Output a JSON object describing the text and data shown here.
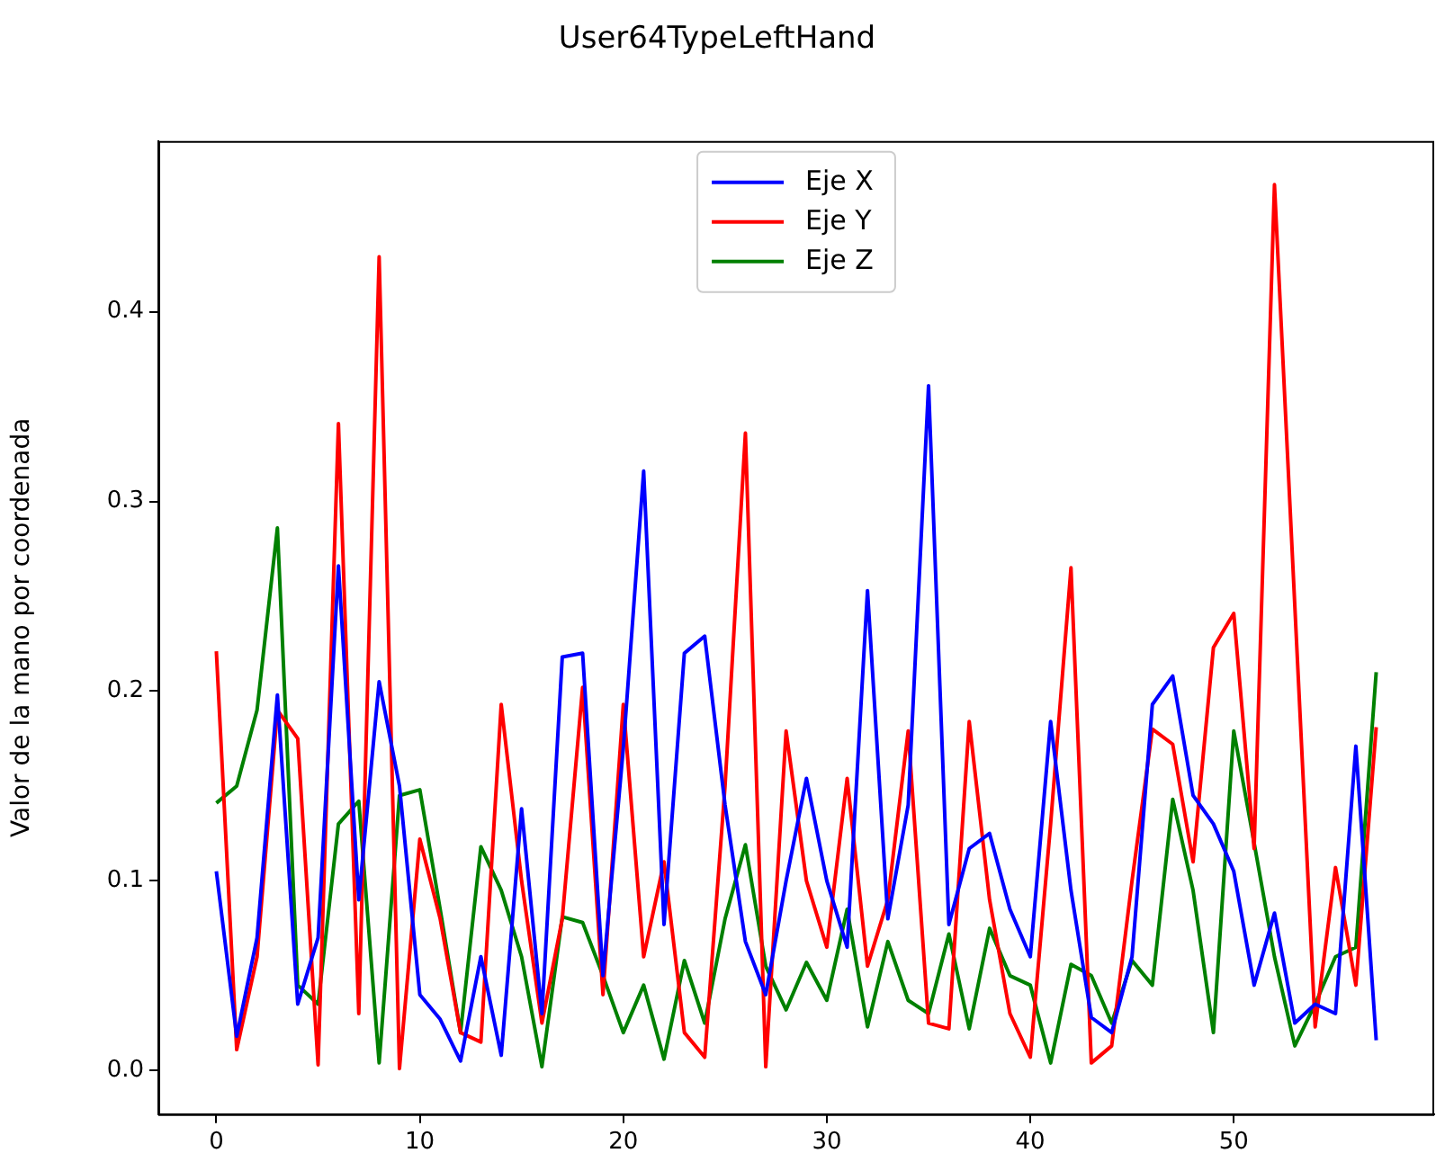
{
  "chart_data": {
    "type": "line",
    "title": "User64TypeLeftHand",
    "ylabel": "Valor de la mano por coordenada",
    "x": [
      0,
      1,
      2,
      3,
      4,
      5,
      6,
      7,
      8,
      9,
      10,
      11,
      12,
      13,
      14,
      15,
      16,
      17,
      18,
      19,
      20,
      21,
      22,
      23,
      24,
      25,
      26,
      27,
      28,
      29,
      30,
      31,
      32,
      33,
      34,
      35,
      36,
      37,
      38,
      39,
      40,
      41,
      42,
      43,
      44,
      45,
      46,
      47,
      48,
      49,
      50,
      51,
      52,
      53,
      54,
      55,
      56,
      57
    ],
    "series": [
      {
        "name": "Eje X",
        "color": "#0000ff",
        "values": [
          0.105,
          0.018,
          0.07,
          0.198,
          0.035,
          0.07,
          0.266,
          0.09,
          0.205,
          0.15,
          0.04,
          0.027,
          0.005,
          0.06,
          0.008,
          0.138,
          0.03,
          0.218,
          0.22,
          0.05,
          0.17,
          0.316,
          0.077,
          0.22,
          0.229,
          0.14,
          0.068,
          0.04,
          0.1,
          0.154,
          0.1,
          0.065,
          0.253,
          0.08,
          0.14,
          0.361,
          0.077,
          0.117,
          0.125,
          0.085,
          0.06,
          0.184,
          0.095,
          0.028,
          0.02,
          0.06,
          0.193,
          0.208,
          0.145,
          0.13,
          0.105,
          0.045,
          0.083,
          0.025,
          0.035,
          0.03,
          0.171,
          0.016
        ]
      },
      {
        "name": "Eje Y",
        "color": "#ff0000",
        "values": [
          0.221,
          0.011,
          0.06,
          0.19,
          0.175,
          0.003,
          0.341,
          0.03,
          0.429,
          0.001,
          0.122,
          0.08,
          0.02,
          0.015,
          0.193,
          0.1,
          0.025,
          0.08,
          0.202,
          0.04,
          0.193,
          0.06,
          0.11,
          0.02,
          0.007,
          0.15,
          0.336,
          0.002,
          0.179,
          0.1,
          0.065,
          0.154,
          0.055,
          0.09,
          0.179,
          0.025,
          0.022,
          0.184,
          0.09,
          0.03,
          0.007,
          0.13,
          0.265,
          0.004,
          0.013,
          0.1,
          0.18,
          0.172,
          0.11,
          0.223,
          0.241,
          0.117,
          0.467,
          0.245,
          0.023,
          0.107,
          0.045,
          0.181
        ]
      },
      {
        "name": "Eje Z",
        "color": "#008000",
        "values": [
          0.141,
          0.15,
          0.19,
          0.286,
          0.045,
          0.035,
          0.13,
          0.142,
          0.004,
          0.145,
          0.148,
          0.085,
          0.02,
          0.118,
          0.095,
          0.06,
          0.002,
          0.081,
          0.078,
          0.05,
          0.02,
          0.045,
          0.006,
          0.058,
          0.025,
          0.08,
          0.119,
          0.055,
          0.032,
          0.057,
          0.037,
          0.085,
          0.023,
          0.068,
          0.037,
          0.03,
          0.072,
          0.022,
          0.075,
          0.05,
          0.045,
          0.004,
          0.056,
          0.05,
          0.025,
          0.058,
          0.045,
          0.143,
          0.095,
          0.02,
          0.179,
          0.12,
          0.06,
          0.013,
          0.035,
          0.06,
          0.065,
          0.21
        ]
      }
    ],
    "xlim": [
      -2.85,
      59.85
    ],
    "xticks": [
      0,
      10,
      20,
      30,
      40,
      50
    ],
    "ylim": [
      -0.023,
      0.49
    ],
    "yticks": [
      {
        "value": 0,
        "label": "0.0"
      },
      {
        "value": 0.1,
        "label": "0.1"
      },
      {
        "value": 0.2,
        "label": "0.2"
      },
      {
        "value": 0.3,
        "label": "0.3"
      },
      {
        "value": 0.4,
        "label": "0.4"
      }
    ],
    "grid": false,
    "legend": "top",
    "marker": "none",
    "line_style": "solid"
  }
}
